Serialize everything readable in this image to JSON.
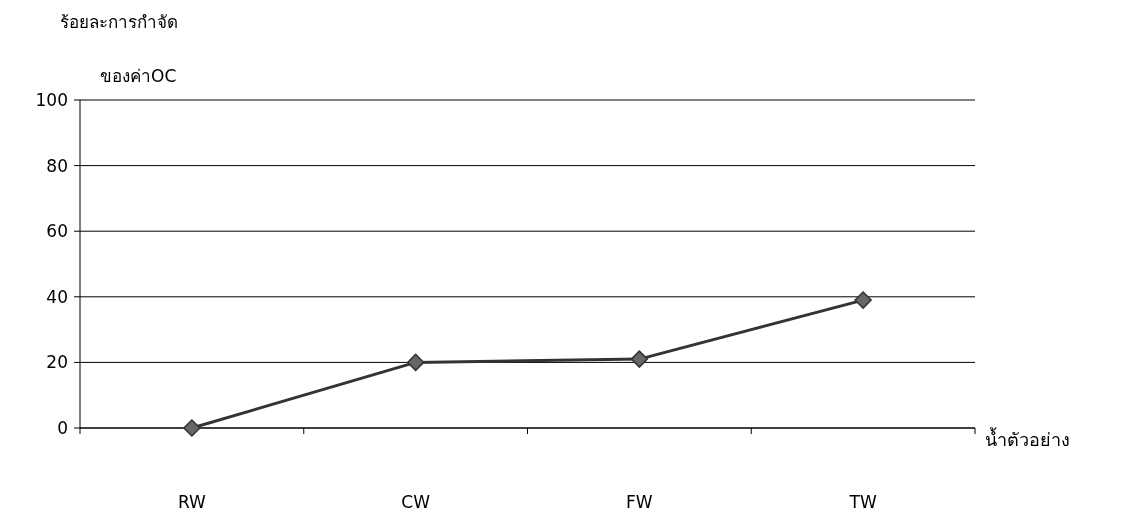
{
  "chart_data": {
    "type": "line",
    "title": "ร้อยละการกำจัด",
    "ylabel": "ของค่าOC",
    "xlabel": "น้ำตัวอย่าง",
    "categories": [
      "RW",
      "CW",
      "FW",
      "TW"
    ],
    "series": [
      {
        "color": "#333333",
        "values": [
          0,
          20,
          21,
          39
        ]
      }
    ],
    "ylim": [
      0,
      100
    ],
    "yticks": [
      0,
      20,
      40,
      60,
      80,
      100
    ],
    "grid": "y",
    "marker": "diamond",
    "line_style": "solid"
  }
}
